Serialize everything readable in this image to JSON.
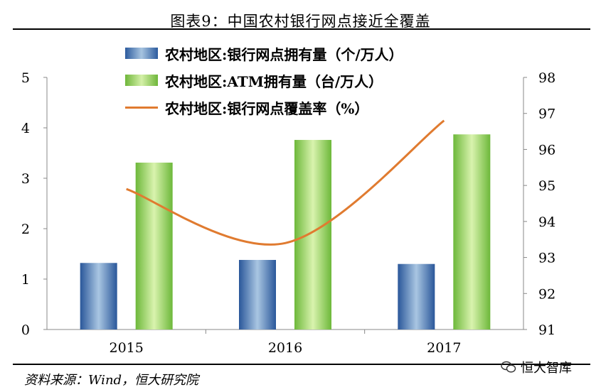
{
  "title": "图表9：中国农村银行网点接近全覆盖",
  "source": "资料来源：Wind，恒大研究院",
  "brand": "恒大智库",
  "chart_data": {
    "type": "bar",
    "categories": [
      "2015",
      "2016",
      "2017"
    ],
    "series": [
      {
        "name": "农村地区:银行网点拥有量（个/万人）",
        "type": "bar",
        "axis": "left",
        "values": [
          1.32,
          1.38,
          1.3
        ],
        "color": "#2c5b9e"
      },
      {
        "name": "农村地区:ATM拥有量（台/万人）",
        "type": "bar",
        "axis": "left",
        "values": [
          3.31,
          3.76,
          3.87
        ],
        "color": "#8ccf4f"
      },
      {
        "name": "农村地区:银行网点覆盖率（%）",
        "type": "line",
        "axis": "right",
        "values": [
          94.9,
          93.4,
          96.8
        ],
        "color": "#e07b30"
      }
    ],
    "y_left": {
      "min": 0,
      "max": 5,
      "ticks": [
        0,
        1,
        2,
        3,
        4,
        5
      ]
    },
    "y_right": {
      "min": 91,
      "max": 98,
      "ticks": [
        91,
        92,
        93,
        94,
        95,
        96,
        97,
        98
      ]
    },
    "legend_position": "top-left"
  }
}
